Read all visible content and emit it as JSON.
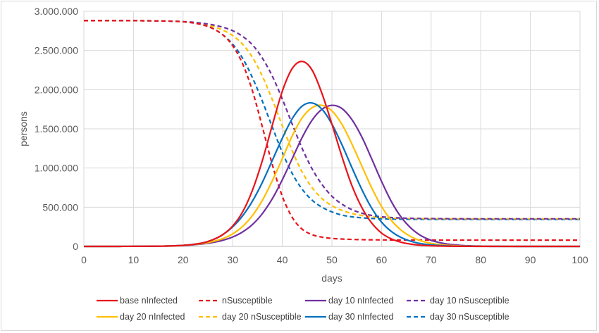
{
  "chart_data": {
    "type": "line",
    "title": "",
    "xlabel": "days",
    "ylabel": "persons",
    "xlim": [
      0,
      100
    ],
    "ylim": [
      0,
      3000000
    ],
    "x_ticks": [
      "0",
      "10",
      "20",
      "30",
      "40",
      "50",
      "60",
      "70",
      "80",
      "90",
      "100"
    ],
    "y_ticks": [
      "0",
      "500.000",
      "1.000.000",
      "1.500.000",
      "2.000.000",
      "2.500.000",
      "3.000.000"
    ],
    "y_tick_values": [
      0,
      500000,
      1000000,
      1500000,
      2000000,
      2500000,
      3000000
    ],
    "grid": true,
    "legend_position": "bottom",
    "x": [
      0,
      2,
      4,
      6,
      8,
      10,
      12,
      14,
      16,
      18,
      20,
      22,
      24,
      26,
      28,
      30,
      32,
      34,
      36,
      38,
      40,
      42,
      44,
      46,
      48,
      50,
      52,
      54,
      56,
      58,
      60,
      62,
      64,
      66,
      68,
      70,
      72,
      74,
      76,
      78,
      80,
      82,
      84,
      86,
      88,
      90,
      92,
      94,
      96,
      98,
      100
    ],
    "series": [
      {
        "name": "base nInfected",
        "color": "#e8141b",
        "dash": false,
        "values": [
          0,
          0,
          0,
          0,
          500,
          1000,
          1500,
          2500,
          4000,
          7000,
          13000,
          25000,
          45000,
          85000,
          150000,
          260000,
          440000,
          720000,
          1100000,
          1550000,
          1980000,
          2270000,
          2360000,
          2250000,
          1950000,
          1560000,
          1150000,
          780000,
          500000,
          300000,
          170000,
          95000,
          52000,
          28000,
          15000,
          8000,
          4000,
          2000,
          1000,
          500,
          0,
          0,
          0,
          0,
          0,
          0,
          0,
          0,
          0,
          0,
          0
        ]
      },
      {
        "name": "nSusceptible",
        "color": "#e8141b",
        "dash": true,
        "values": [
          2880000,
          2880000,
          2880000,
          2880000,
          2880000,
          2880000,
          2879000,
          2878000,
          2876000,
          2873000,
          2866000,
          2852000,
          2826000,
          2780000,
          2700000,
          2560000,
          2330000,
          1980000,
          1520000,
          1040000,
          640000,
          370000,
          220000,
          150000,
          118000,
          102000,
          94000,
          89000,
          86000,
          84000,
          83000,
          82000,
          81500,
          81000,
          80800,
          80600,
          80500,
          80400,
          80300,
          80200,
          80100,
          80000,
          80000,
          80000,
          80000,
          80000,
          80000,
          80000,
          80000,
          80000,
          80000
        ]
      },
      {
        "name": "day 10 nInfected",
        "color": "#7030a0",
        "dash": false,
        "values": [
          0,
          0,
          0,
          0,
          500,
          1000,
          1500,
          2500,
          4000,
          7000,
          12000,
          20000,
          32000,
          50000,
          78000,
          120000,
          185000,
          280000,
          420000,
          610000,
          850000,
          1120000,
          1390000,
          1610000,
          1750000,
          1800000,
          1760000,
          1620000,
          1400000,
          1120000,
          830000,
          570000,
          370000,
          230000,
          135000,
          78000,
          44000,
          24000,
          13000,
          7000,
          4000,
          2000,
          1000,
          500,
          0,
          0,
          0,
          0,
          0,
          0,
          0
        ]
      },
      {
        "name": "day 10 nSusceptible",
        "color": "#7030a0",
        "dash": true,
        "values": [
          2880000,
          2880000,
          2880000,
          2880000,
          2880000,
          2880000,
          2879000,
          2878000,
          2876000,
          2873000,
          2868000,
          2860000,
          2846000,
          2826000,
          2797000,
          2752000,
          2680000,
          2570000,
          2400000,
          2170000,
          1880000,
          1560000,
          1250000,
          990000,
          790000,
          640000,
          540000,
          470000,
          425000,
          395000,
          378000,
          368000,
          362000,
          358000,
          356000,
          355000,
          354000,
          353000,
          352500,
          352000,
          352000,
          352000,
          352000,
          352000,
          352000,
          352000,
          352000,
          352000,
          352000,
          352000,
          352000
        ]
      },
      {
        "name": "day 20 nInfected",
        "color": "#ffc000",
        "dash": false,
        "values": [
          0,
          0,
          0,
          0,
          500,
          1000,
          1500,
          2500,
          4000,
          7000,
          13000,
          23000,
          38000,
          62000,
          100000,
          160000,
          255000,
          395000,
          590000,
          840000,
          1120000,
          1410000,
          1640000,
          1770000,
          1800000,
          1730000,
          1560000,
          1310000,
          1030000,
          750000,
          510000,
          330000,
          205000,
          122000,
          70000,
          39000,
          21000,
          11000,
          6000,
          3000,
          1500,
          800,
          400,
          0,
          0,
          0,
          0,
          0,
          0,
          0,
          0
        ]
      },
      {
        "name": "day 20 nSusceptible",
        "color": "#ffc000",
        "dash": true,
        "values": [
          2880000,
          2880000,
          2880000,
          2880000,
          2880000,
          2880000,
          2879000,
          2878000,
          2876000,
          2873000,
          2866000,
          2855000,
          2836000,
          2806000,
          2760000,
          2690000,
          2580000,
          2410000,
          2170000,
          1870000,
          1540000,
          1220000,
          950000,
          750000,
          610000,
          520000,
          460000,
          420000,
          395000,
          378000,
          368000,
          362000,
          358000,
          356000,
          355000,
          354000,
          353000,
          352500,
          352000,
          352000,
          352000,
          352000,
          352000,
          352000,
          352000,
          352000,
          352000,
          352000,
          352000,
          352000,
          352000
        ]
      },
      {
        "name": "day 30 nInfected",
        "color": "#0070c0",
        "dash": false,
        "values": [
          0,
          0,
          0,
          0,
          500,
          1000,
          1500,
          2500,
          4000,
          7000,
          13000,
          25000,
          45000,
          85000,
          150000,
          250000,
          390000,
          580000,
          820000,
          1100000,
          1380000,
          1630000,
          1790000,
          1830000,
          1750000,
          1560000,
          1300000,
          1010000,
          730000,
          490000,
          310000,
          190000,
          112000,
          64000,
          35000,
          19000,
          10000,
          5000,
          2500,
          1200,
          600,
          300,
          0,
          0,
          0,
          0,
          0,
          0,
          0,
          0,
          0
        ]
      },
      {
        "name": "day 30 nSusceptible",
        "color": "#0070c0",
        "dash": true,
        "values": [
          2880000,
          2880000,
          2880000,
          2880000,
          2880000,
          2880000,
          2879000,
          2878000,
          2876000,
          2873000,
          2866000,
          2852000,
          2826000,
          2780000,
          2700000,
          2580000,
          2400000,
          2150000,
          1850000,
          1520000,
          1200000,
          930000,
          730000,
          590000,
          500000,
          440000,
          400000,
          378000,
          365000,
          357000,
          352000,
          349000,
          347000,
          346000,
          345500,
          345000,
          345000,
          345000,
          345000,
          345000,
          345000,
          345000,
          345000,
          345000,
          345000,
          345000,
          345000,
          345000,
          345000,
          345000,
          345000
        ]
      }
    ],
    "legend": [
      [
        "base nInfected",
        "nSusceptible",
        "day 10 nInfected",
        "day 10 nSusceptible"
      ],
      [
        "day 20 nInfected",
        "day 20 nSusceptible",
        "day 30 nInfected",
        "day 30 nSusceptible"
      ]
    ]
  }
}
